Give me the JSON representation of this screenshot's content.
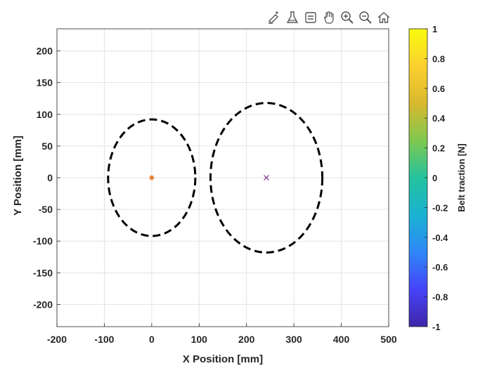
{
  "toolbar": {
    "tools": [
      "brush-edit-icon",
      "data-tips-icon",
      "legend-icon",
      "pan-hand-icon",
      "zoom-in-icon",
      "zoom-out-icon",
      "home-icon"
    ]
  },
  "chart_data": {
    "type": "scatter",
    "title": "",
    "xlabel": "X Position [mm]",
    "ylabel": "Y Position [mm]",
    "xlim": [
      -200,
      500
    ],
    "ylim": [
      -235,
      235
    ],
    "xticks": [
      -200,
      -100,
      0,
      100,
      200,
      300,
      400,
      500
    ],
    "yticks": [
      -200,
      -150,
      -100,
      -50,
      0,
      50,
      100,
      150,
      200
    ],
    "grid": true,
    "ellipses": [
      {
        "cx": 0,
        "cy": 0,
        "rx": 92,
        "ry": 92,
        "style": "dashed",
        "color": "#000000"
      },
      {
        "cx": 242,
        "cy": 0,
        "rx": 118,
        "ry": 118,
        "style": "dashed",
        "color": "#000000"
      }
    ],
    "markers": [
      {
        "x": 0,
        "y": 0,
        "symbol": "asterisk",
        "color": "#e87a2a"
      },
      {
        "x": 242,
        "y": 0,
        "symbol": "x",
        "color": "#7e2f8e"
      }
    ],
    "colorbar": {
      "label": "Belt traction [N]",
      "range": [
        -1,
        1
      ],
      "ticks": [
        "1",
        "0.8",
        "0.6",
        "0.4",
        "0.2",
        "0",
        "-0.2",
        "-0.4",
        "-0.6",
        "-0.8",
        "-1"
      ],
      "colormap": [
        "#3e26a8",
        "#4743f8",
        "#2e87f8",
        "#1ab2d2",
        "#24c39e",
        "#7fc84f",
        "#d9b92e",
        "#fbd02e",
        "#f9fb0e"
      ]
    }
  }
}
